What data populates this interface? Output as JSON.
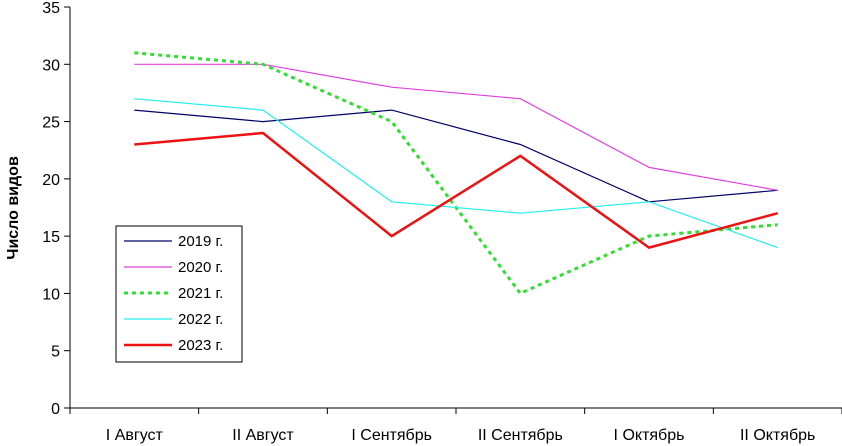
{
  "chart_data": {
    "type": "line",
    "title": "",
    "xlabel": "",
    "ylabel": "Число видов",
    "categories": [
      "I Август",
      "II Август",
      "I Сентябрь",
      "II Сентябрь",
      "I Октябрь",
      "II Октябрь"
    ],
    "ylim": [
      0,
      35
    ],
    "yticks": [
      "0",
      "5",
      "10",
      "15",
      "20",
      "25",
      "30",
      "35"
    ],
    "grid": false,
    "legend_position": "left",
    "series": [
      {
        "name": "2019 г.",
        "values": [
          26,
          25,
          26,
          23,
          18,
          19
        ],
        "color": "#000066",
        "style": "solid"
      },
      {
        "name": "2020 г.",
        "values": [
          30,
          30,
          28,
          27,
          21,
          19
        ],
        "color": "#e040e0",
        "style": "solid"
      },
      {
        "name": "2021 г.",
        "values": [
          31,
          30,
          25,
          10,
          15,
          16
        ],
        "color": "#33dd33",
        "style": "dotted"
      },
      {
        "name": "2022 г.",
        "values": [
          27,
          26,
          18,
          17,
          18,
          14
        ],
        "color": "#22eeee",
        "style": "solid"
      },
      {
        "name": "2023 г.",
        "values": [
          23,
          24,
          15,
          22,
          14,
          17
        ],
        "color": "#ee1111",
        "style": "solid"
      }
    ]
  }
}
